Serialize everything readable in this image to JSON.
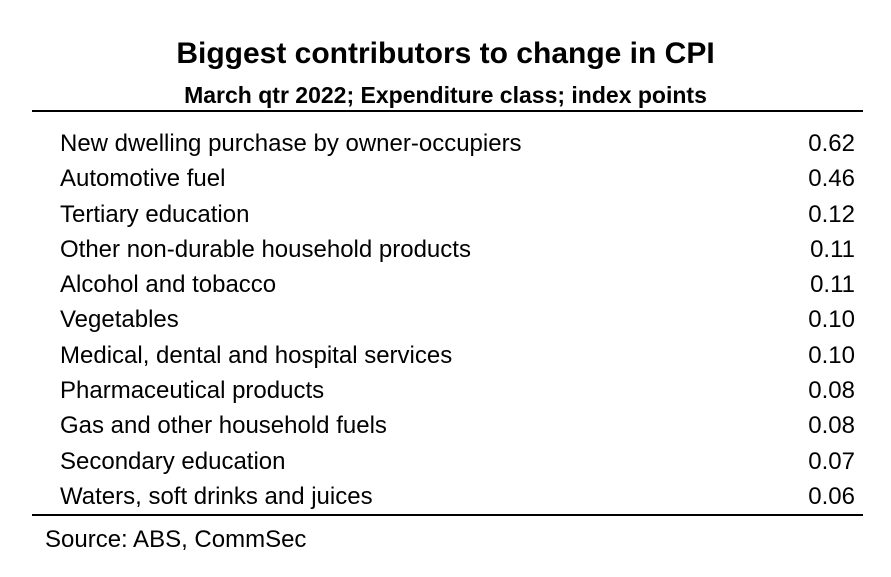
{
  "chart_data": {
    "type": "table",
    "title": "Biggest contributors to change in CPI",
    "subtitle": "March qtr 2022; Expenditure class; index points",
    "rows": [
      {
        "label": "New dwelling purchase by owner-occupiers",
        "value": "0.62"
      },
      {
        "label": "Automotive fuel",
        "value": "0.46"
      },
      {
        "label": "Tertiary education",
        "value": "0.12"
      },
      {
        "label": "Other non-durable household products",
        "value": "0.11"
      },
      {
        "label": "Alcohol and tobacco",
        "value": "0.11"
      },
      {
        "label": "Vegetables",
        "value": "0.10"
      },
      {
        "label": "Medical, dental and hospital services",
        "value": "0.10"
      },
      {
        "label": "Pharmaceutical products",
        "value": "0.08"
      },
      {
        "label": "Gas and other household fuels",
        "value": "0.08"
      },
      {
        "label": "Secondary education",
        "value": "0.07"
      },
      {
        "label": "Waters, soft drinks and juices",
        "value": "0.06"
      }
    ],
    "source": "Source: ABS, CommSec"
  }
}
